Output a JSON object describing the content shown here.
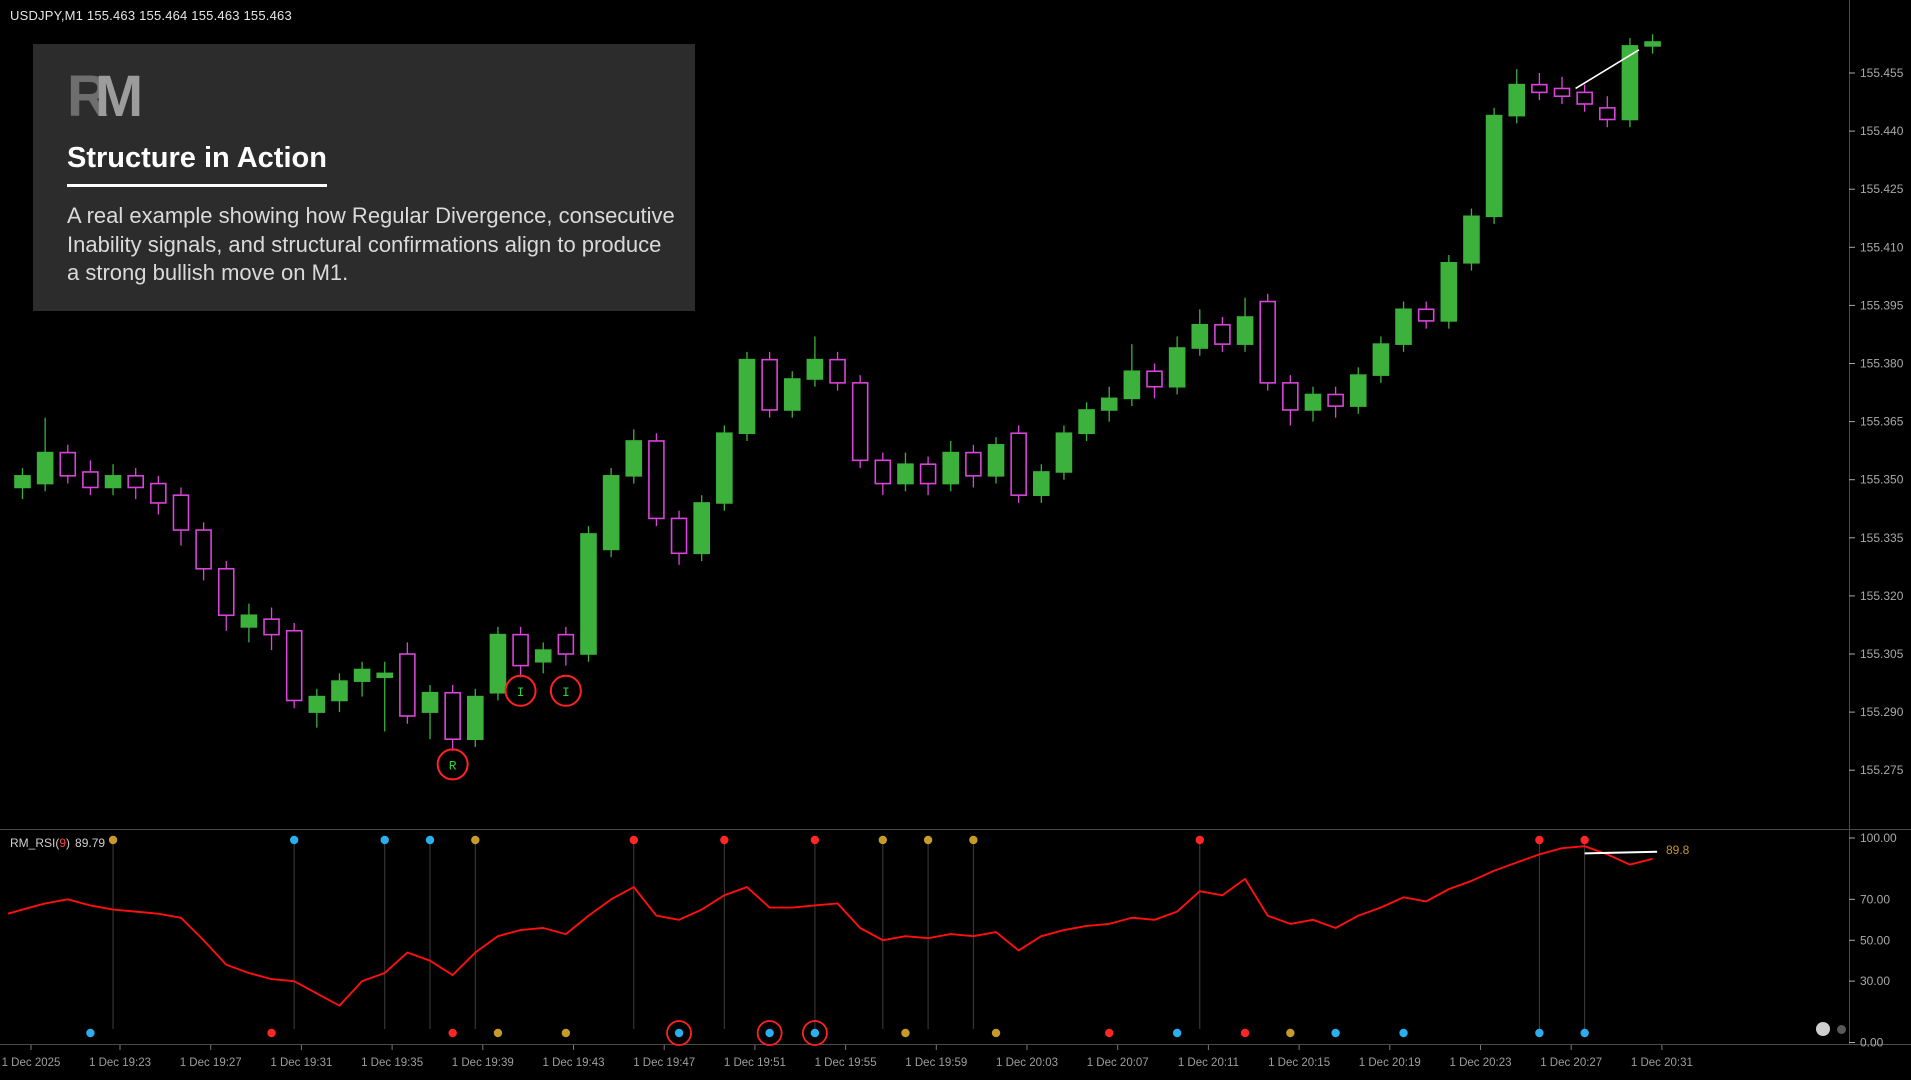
{
  "header": {
    "symbol_line": "USDJPY,M1 155.463 155.464 155.463 155.463"
  },
  "info_box": {
    "logo_r": "R",
    "logo_m": "M",
    "title": "Structure in Action",
    "body": "A real example showing how Regular Divergence, consecutive Inability signals, and structural confirmations align to produce a strong bullish move on M1."
  },
  "indicator": {
    "name_prefix": "RM_RSI(",
    "period": "9",
    "name_suffix": ")",
    "value": "89.79",
    "axis_value_label": "89.8"
  },
  "colors": {
    "background": "#000000",
    "bull": "#3cb13c",
    "bear": "#d944d9",
    "rsi_line": "#ff0f0f",
    "dot_orange": "#c79a2a",
    "dot_blue": "#2aaef0",
    "dot_red": "#ff2626",
    "marker_circle": "#ff2222",
    "marker_text": "#2fd32f",
    "accent_label": "#c8922e",
    "axis_text": "#a8a8a8",
    "divider": "#4b4b4b",
    "highlight_line": "#ffffff"
  },
  "chart_data": {
    "type": "candlestick",
    "symbol": "USDJPY",
    "timeframe": "M1",
    "price_ticks": [
      "155.455",
      "155.440",
      "155.425",
      "155.410",
      "155.395",
      "155.380",
      "155.365",
      "155.350",
      "155.335",
      "155.320",
      "155.305",
      "155.290",
      "155.275"
    ],
    "time_ticks": [
      "1 Dec 2025",
      "1 Dec 19:23",
      "1 Dec 19:27",
      "1 Dec 19:31",
      "1 Dec 19:35",
      "1 Dec 19:39",
      "1 Dec 19:43",
      "1 Dec 19:47",
      "1 Dec 19:51",
      "1 Dec 19:55",
      "1 Dec 19:59",
      "1 Dec 20:03",
      "1 Dec 20:07",
      "1 Dec 20:11",
      "1 Dec 20:15",
      "1 Dec 20:19",
      "1 Dec 20:23",
      "1 Dec 20:27",
      "1 Dec 20:31"
    ],
    "candles": [
      [
        155.348,
        155.353,
        155.345,
        155.351
      ],
      [
        155.349,
        155.366,
        155.347,
        155.357
      ],
      [
        155.357,
        155.359,
        155.349,
        155.351
      ],
      [
        155.352,
        155.355,
        155.346,
        155.348
      ],
      [
        155.348,
        155.354,
        155.346,
        155.351
      ],
      [
        155.351,
        155.353,
        155.345,
        155.348
      ],
      [
        155.349,
        155.351,
        155.341,
        155.344
      ],
      [
        155.346,
        155.348,
        155.333,
        155.337
      ],
      [
        155.337,
        155.339,
        155.324,
        155.327
      ],
      [
        155.327,
        155.329,
        155.311,
        155.315
      ],
      [
        155.312,
        155.318,
        155.308,
        155.315
      ],
      [
        155.314,
        155.317,
        155.306,
        155.31
      ],
      [
        155.311,
        155.313,
        155.291,
        155.293
      ],
      [
        155.29,
        155.296,
        155.286,
        155.294
      ],
      [
        155.293,
        155.3,
        155.29,
        155.298
      ],
      [
        155.298,
        155.303,
        155.294,
        155.301
      ],
      [
        155.299,
        155.303,
        155.285,
        155.3
      ],
      [
        155.305,
        155.308,
        155.287,
        155.289
      ],
      [
        155.29,
        155.297,
        155.283,
        155.295
      ],
      [
        155.295,
        155.297,
        155.28,
        155.283
      ],
      [
        155.283,
        155.296,
        155.281,
        155.294
      ],
      [
        155.295,
        155.312,
        155.293,
        155.31
      ],
      [
        155.31,
        155.312,
        155.299,
        155.302
      ],
      [
        155.303,
        155.308,
        155.3,
        155.306
      ],
      [
        155.31,
        155.312,
        155.302,
        155.305
      ],
      [
        155.305,
        155.338,
        155.303,
        155.336
      ],
      [
        155.332,
        155.353,
        155.33,
        155.351
      ],
      [
        155.351,
        155.363,
        155.349,
        155.36
      ],
      [
        155.36,
        155.362,
        155.338,
        155.34
      ],
      [
        155.34,
        155.342,
        155.328,
        155.331
      ],
      [
        155.331,
        155.346,
        155.329,
        155.344
      ],
      [
        155.344,
        155.364,
        155.342,
        155.362
      ],
      [
        155.362,
        155.383,
        155.36,
        155.381
      ],
      [
        155.381,
        155.383,
        155.366,
        155.368
      ],
      [
        155.368,
        155.378,
        155.366,
        155.376
      ],
      [
        155.376,
        155.387,
        155.374,
        155.381
      ],
      [
        155.381,
        155.383,
        155.373,
        155.375
      ],
      [
        155.375,
        155.377,
        155.353,
        155.355
      ],
      [
        155.355,
        155.357,
        155.346,
        155.349
      ],
      [
        155.349,
        155.357,
        155.347,
        155.354
      ],
      [
        155.354,
        155.356,
        155.346,
        155.349
      ],
      [
        155.349,
        155.36,
        155.347,
        155.357
      ],
      [
        155.357,
        155.359,
        155.348,
        155.351
      ],
      [
        155.351,
        155.361,
        155.349,
        155.359
      ],
      [
        155.362,
        155.364,
        155.344,
        155.346
      ],
      [
        155.346,
        155.354,
        155.344,
        155.352
      ],
      [
        155.352,
        155.364,
        155.35,
        155.362
      ],
      [
        155.362,
        155.37,
        155.36,
        155.368
      ],
      [
        155.368,
        155.374,
        155.365,
        155.371
      ],
      [
        155.371,
        155.385,
        155.369,
        155.378
      ],
      [
        155.378,
        155.38,
        155.371,
        155.374
      ],
      [
        155.374,
        155.387,
        155.372,
        155.384
      ],
      [
        155.384,
        155.394,
        155.382,
        155.39
      ],
      [
        155.39,
        155.392,
        155.383,
        155.385
      ],
      [
        155.385,
        155.397,
        155.383,
        155.392
      ],
      [
        155.396,
        155.398,
        155.373,
        155.375
      ],
      [
        155.375,
        155.377,
        155.364,
        155.368
      ],
      [
        155.368,
        155.374,
        155.365,
        155.372
      ],
      [
        155.372,
        155.374,
        155.366,
        155.369
      ],
      [
        155.369,
        155.379,
        155.367,
        155.377
      ],
      [
        155.377,
        155.387,
        155.375,
        155.385
      ],
      [
        155.385,
        155.396,
        155.383,
        155.394
      ],
      [
        155.394,
        155.396,
        155.389,
        155.391
      ],
      [
        155.391,
        155.408,
        155.389,
        155.406
      ],
      [
        155.406,
        155.42,
        155.404,
        155.418
      ],
      [
        155.418,
        155.446,
        155.416,
        155.444
      ],
      [
        155.444,
        155.456,
        155.442,
        155.452
      ],
      [
        155.452,
        155.455,
        155.448,
        155.45
      ],
      [
        155.451,
        155.454,
        155.447,
        155.449
      ],
      [
        155.45,
        155.452,
        155.445,
        155.447
      ],
      [
        155.446,
        155.449,
        155.441,
        155.443
      ],
      [
        155.443,
        155.464,
        155.441,
        155.462
      ],
      [
        155.462,
        155.465,
        155.46,
        155.463
      ]
    ],
    "annotations": {
      "signal_markers": [
        {
          "i": 19,
          "price": 155.2765,
          "label": "R"
        },
        {
          "i": 22,
          "price": 155.2955,
          "label": "I"
        },
        {
          "i": 24,
          "price": 155.2955,
          "label": "I"
        }
      ],
      "trendline": {
        "i1": 68.6,
        "p1": 155.451,
        "i2": 71.4,
        "p2": 155.461
      }
    },
    "rsi_panel": {
      "type": "line",
      "name": "RM_RSI",
      "period": 9,
      "last_value": 89.79,
      "levels": [
        "100.00",
        "70.00",
        "50.00",
        "30.00",
        "0.00"
      ],
      "values": [
        65,
        68,
        70,
        67,
        65,
        64,
        63,
        61,
        50,
        38,
        34,
        31,
        30,
        24,
        18,
        30,
        34,
        44,
        40,
        33,
        44,
        52,
        55,
        56,
        53,
        62,
        70,
        76,
        62,
        60,
        65,
        72,
        76,
        66,
        66,
        67,
        68,
        56,
        50,
        52,
        51,
        53,
        52,
        54,
        45,
        52,
        55,
        57,
        58,
        61,
        60,
        64,
        74,
        72,
        80,
        62,
        58,
        60,
        56,
        62,
        66,
        71,
        69,
        75,
        79,
        84,
        88,
        92,
        95,
        96,
        92,
        87,
        89.8
      ],
      "dots_top": [
        {
          "i": 4,
          "color": "orange"
        },
        {
          "i": 12,
          "color": "blue"
        },
        {
          "i": 16,
          "color": "blue"
        },
        {
          "i": 18,
          "color": "blue"
        },
        {
          "i": 20,
          "color": "orange"
        },
        {
          "i": 27,
          "color": "red"
        },
        {
          "i": 31,
          "color": "red"
        },
        {
          "i": 35,
          "color": "red"
        },
        {
          "i": 38,
          "color": "orange"
        },
        {
          "i": 40,
          "color": "orange"
        },
        {
          "i": 42,
          "color": "orange"
        },
        {
          "i": 52,
          "color": "red"
        },
        {
          "i": 67,
          "color": "red"
        },
        {
          "i": 69,
          "color": "red"
        }
      ],
      "dots_bottom": [
        {
          "i": 3,
          "color": "blue"
        },
        {
          "i": 11,
          "color": "red"
        },
        {
          "i": 19,
          "color": "red"
        },
        {
          "i": 21,
          "color": "orange"
        },
        {
          "i": 24,
          "color": "orange"
        },
        {
          "i": 29,
          "color": "blue",
          "circled": true
        },
        {
          "i": 33,
          "color": "blue",
          "circled": true
        },
        {
          "i": 35,
          "color": "blue",
          "circled": true
        },
        {
          "i": 39,
          "color": "orange"
        },
        {
          "i": 43,
          "color": "orange"
        },
        {
          "i": 48,
          "color": "red"
        },
        {
          "i": 51,
          "color": "blue"
        },
        {
          "i": 54,
          "color": "red"
        },
        {
          "i": 56,
          "color": "orange"
        },
        {
          "i": 58,
          "color": "blue"
        },
        {
          "i": 61,
          "color": "blue"
        },
        {
          "i": 67,
          "color": "blue"
        },
        {
          "i": 69,
          "color": "blue"
        }
      ],
      "highlight_line": {
        "i1": 69,
        "v1": 92.5,
        "i2": 72.2,
        "v2": 93.3
      }
    }
  }
}
